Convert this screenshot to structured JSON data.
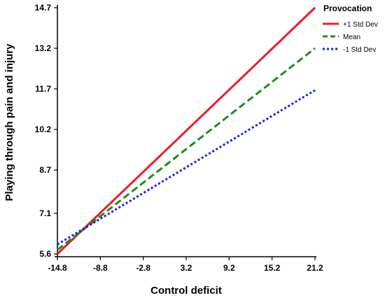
{
  "chart_data": {
    "type": "line",
    "xlabel": "Control deficit",
    "ylabel": "Playing through pain and injury",
    "xlim": [
      -14.8,
      21.2
    ],
    "ylim": [
      5.6,
      14.7
    ],
    "x_ticks": [
      -14.8,
      -8.8,
      -2.8,
      3.2,
      9.2,
      15.2,
      21.2
    ],
    "x_tick_labels": [
      "-14.8",
      "-8.8",
      "-2.8",
      "3.2",
      "9.2",
      "15.2",
      "21.2"
    ],
    "y_ticks": [
      5.6,
      7.1,
      8.7,
      10.2,
      11.7,
      13.2,
      14.7
    ],
    "y_tick_labels": [
      "5.6",
      "7.1",
      "8.7",
      "10.2",
      "11.7",
      "13.2",
      "14.7"
    ],
    "legend": {
      "title": "Provocation",
      "placement": "top-right"
    },
    "series": [
      {
        "name": "+1 Std Dev",
        "x": [
          -14.8,
          21.2
        ],
        "y": [
          5.6,
          14.7
        ],
        "color": "#ee1c25",
        "style": "solid"
      },
      {
        "name": "Mean",
        "x": [
          -14.8,
          21.2
        ],
        "y": [
          5.75,
          13.2
        ],
        "color": "#1e8c1e",
        "style": "dashed"
      },
      {
        "name": "-1 Std Dev",
        "x": [
          -14.8,
          21.2
        ],
        "y": [
          5.95,
          11.65
        ],
        "color": "#1c1ce8",
        "style": "dotted"
      }
    ]
  }
}
